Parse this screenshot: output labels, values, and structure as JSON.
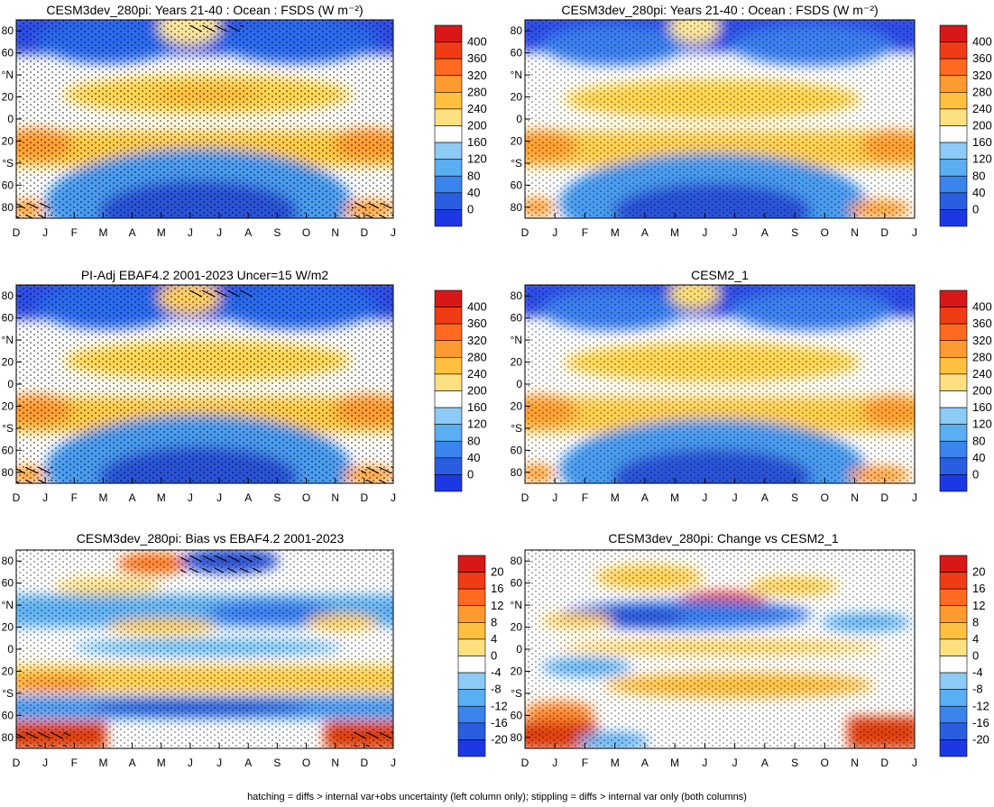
{
  "figure": {
    "footnote": "hatching = diffs > internal var+obs uncertainty (left column only); stippling = diffs > internal var only (both columns)"
  },
  "chart_data": [
    {
      "type": "heatmap",
      "title": "CESM3dev_280pi: Years 21-40 : Ocean : FSDS (W m⁻²)",
      "x_tick_labels": [
        "D",
        "J",
        "F",
        "M",
        "A",
        "M",
        "J",
        "J",
        "A",
        "S",
        "O",
        "N",
        "D",
        "J"
      ],
      "y_tick_labels": [
        "80",
        "60",
        "°N",
        "20",
        "0",
        "20",
        "°S",
        "60",
        "80"
      ],
      "ylim": [
        -90,
        90
      ],
      "colorbar": {
        "levels": [
          "400",
          "360",
          "320",
          "280",
          "240",
          "200",
          "160",
          "120",
          "80",
          "40",
          "0"
        ]
      },
      "hatching": true,
      "stippling": true
    },
    {
      "type": "heatmap",
      "title": "CESM3dev_280pi: Years 21-40 : Ocean : FSDS (W m⁻²)",
      "x_tick_labels": [
        "D",
        "J",
        "F",
        "M",
        "A",
        "M",
        "J",
        "J",
        "A",
        "S",
        "O",
        "N",
        "D",
        "J"
      ],
      "y_tick_labels": [
        "80",
        "60",
        "°N",
        "20",
        "0",
        "20",
        "°S",
        "60",
        "80"
      ],
      "ylim": [
        -90,
        90
      ],
      "colorbar": {
        "levels": [
          "400",
          "360",
          "320",
          "280",
          "240",
          "200",
          "160",
          "120",
          "80",
          "40",
          "0"
        ]
      },
      "hatching": false,
      "stippling": true
    },
    {
      "type": "heatmap",
      "title": "PI-Adj EBAF4.2 2001-2023 Uncer=15 W/m2",
      "x_tick_labels": [
        "D",
        "J",
        "F",
        "M",
        "A",
        "M",
        "J",
        "J",
        "A",
        "S",
        "O",
        "N",
        "D",
        "J"
      ],
      "y_tick_labels": [
        "80",
        "60",
        "°N",
        "20",
        "0",
        "20",
        "°S",
        "60",
        "80"
      ],
      "ylim": [
        -90,
        90
      ],
      "colorbar": {
        "levels": [
          "400",
          "360",
          "320",
          "280",
          "240",
          "200",
          "160",
          "120",
          "80",
          "40",
          "0"
        ]
      },
      "hatching": true,
      "stippling": true
    },
    {
      "type": "heatmap",
      "title": "CESM2_1",
      "x_tick_labels": [
        "D",
        "J",
        "F",
        "M",
        "A",
        "M",
        "J",
        "J",
        "A",
        "S",
        "O",
        "N",
        "D",
        "J"
      ],
      "y_tick_labels": [
        "80",
        "60",
        "°N",
        "20",
        "0",
        "20",
        "°S",
        "60",
        "80"
      ],
      "ylim": [
        -90,
        90
      ],
      "colorbar": {
        "levels": [
          "400",
          "360",
          "320",
          "280",
          "240",
          "200",
          "160",
          "120",
          "80",
          "40",
          "0"
        ]
      },
      "hatching": false,
      "stippling": true
    },
    {
      "type": "heatmap",
      "title": "CESM3dev_280pi: Bias vs EBAF4.2 2001-2023",
      "x_tick_labels": [
        "D",
        "J",
        "F",
        "M",
        "A",
        "M",
        "J",
        "J",
        "A",
        "S",
        "O",
        "N",
        "D",
        "J"
      ],
      "y_tick_labels": [
        "80",
        "60",
        "°N",
        "20",
        "0",
        "20",
        "°S",
        "60",
        "80"
      ],
      "ylim": [
        -90,
        90
      ],
      "colorbar": {
        "levels": [
          "20",
          "16",
          "12",
          "8",
          "4",
          "0",
          "-4",
          "-8",
          "-12",
          "-16",
          "-20"
        ]
      },
      "hatching": true,
      "stippling": true
    },
    {
      "type": "heatmap",
      "title": "CESM3dev_280pi: Change vs CESM2_1",
      "x_tick_labels": [
        "D",
        "J",
        "F",
        "M",
        "A",
        "M",
        "J",
        "J",
        "A",
        "S",
        "O",
        "N",
        "D",
        "J"
      ],
      "y_tick_labels": [
        "80",
        "60",
        "°N",
        "20",
        "0",
        "20",
        "°S",
        "60",
        "80"
      ],
      "ylim": [
        -90,
        90
      ],
      "colorbar": {
        "levels": [
          "20",
          "16",
          "12",
          "8",
          "4",
          "0",
          "-4",
          "-8",
          "-12",
          "-16",
          "-20"
        ]
      },
      "hatching": false,
      "stippling": true
    }
  ]
}
